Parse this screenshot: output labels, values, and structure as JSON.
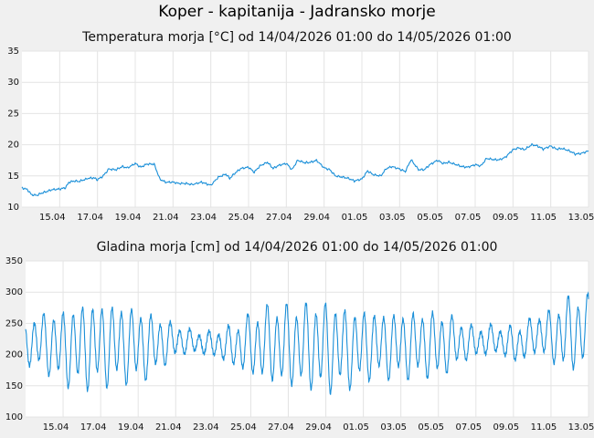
{
  "title": "Koper - kapitanija - Jadransko morje",
  "chart_data": [
    {
      "type": "line",
      "title": "Temperatura morja [°C] od 14/04/2026 01:00 do 14/05/2026 01:00",
      "xlabel": "",
      "ylabel": "",
      "ylim": [
        10,
        35
      ],
      "yticks": [
        10,
        15,
        20,
        25,
        30,
        35
      ],
      "xlim": [
        13.0,
        43.0
      ],
      "x_tick_labels": [
        "15.04",
        "17.04",
        "19.04",
        "21.04",
        "23.04",
        "25.04",
        "27.04",
        "29.04",
        "01.05",
        "03.05",
        "05.05",
        "07.05",
        "09.05",
        "11.05",
        "13.05"
      ],
      "x_tick_positions": [
        15,
        17,
        19,
        21,
        23,
        25,
        27,
        29,
        31,
        33,
        35,
        37,
        39,
        41,
        43
      ],
      "grid": true,
      "color": "#1a8fd8",
      "series": [
        {
          "x": [
            13.0,
            13.3,
            13.5,
            13.8,
            14.0,
            14.3,
            14.6,
            15.0,
            15.3,
            15.5,
            15.8,
            16.0,
            16.5,
            16.8,
            17.0,
            17.3,
            17.6,
            18.0,
            18.3,
            18.6,
            19.0,
            19.3,
            19.6,
            20.0,
            20.3,
            20.6,
            21.0,
            21.3,
            21.7,
            22.0,
            22.5,
            23.0,
            23.4,
            23.8,
            24.0,
            24.3,
            24.6,
            25.0,
            25.3,
            25.6,
            26.0,
            26.3,
            26.6,
            27.0,
            27.3,
            27.6,
            28.0,
            28.3,
            28.6,
            29.0,
            29.3,
            29.6,
            30.0,
            30.3,
            30.6,
            31.0,
            31.3,
            31.6,
            32.0,
            32.3,
            32.6,
            33.0,
            33.3,
            33.6,
            34.0,
            34.3,
            34.6,
            35.0,
            35.3,
            35.6,
            36.0,
            36.3,
            36.6,
            37.0,
            37.3,
            37.6,
            38.0,
            38.3,
            38.6,
            39.0,
            39.3,
            39.6,
            40.0,
            40.3,
            40.6,
            41.0,
            41.3,
            41.6,
            42.0,
            42.3,
            42.6,
            43.0
          ],
          "values": [
            13.1,
            12.8,
            12.0,
            11.9,
            12.2,
            12.5,
            12.8,
            12.9,
            13.1,
            14.0,
            14.2,
            14.1,
            14.6,
            14.7,
            14.4,
            15.0,
            16.1,
            16.0,
            16.5,
            16.3,
            17.0,
            16.4,
            16.9,
            16.9,
            14.5,
            14.0,
            14.0,
            13.8,
            13.8,
            13.6,
            14.0,
            13.5,
            14.8,
            15.3,
            14.6,
            15.5,
            16.2,
            16.4,
            15.6,
            16.6,
            17.2,
            16.2,
            16.7,
            17.0,
            16.0,
            17.5,
            17.1,
            17.2,
            17.5,
            16.3,
            16.0,
            15.0,
            14.8,
            14.6,
            14.2,
            14.5,
            15.8,
            15.2,
            15.0,
            16.2,
            16.5,
            16.1,
            15.7,
            17.6,
            16.0,
            16.0,
            16.8,
            17.5,
            17.0,
            17.2,
            16.8,
            16.5,
            16.4,
            16.8,
            16.6,
            17.8,
            17.6,
            17.6,
            18.0,
            19.2,
            19.5,
            19.2,
            20.0,
            19.8,
            19.3,
            19.8,
            19.3,
            19.4,
            19.0,
            18.5,
            18.6,
            19.0
          ]
        }
      ]
    },
    {
      "type": "line",
      "title": "Gladina morja [cm] od 14/04/2026 01:00 do 14/05/2026 01:00",
      "xlabel": "",
      "ylabel": "",
      "ylim": [
        100,
        350
      ],
      "yticks": [
        100,
        150,
        200,
        250,
        300,
        350
      ],
      "xlim": [
        13.0,
        43.0
      ],
      "x_tick_labels": [
        "15.04",
        "17.04",
        "19.04",
        "21.04",
        "23.04",
        "25.04",
        "27.04",
        "29.04",
        "01.05",
        "03.05",
        "05.05",
        "07.05",
        "09.05",
        "11.05",
        "13.05"
      ],
      "x_tick_positions": [
        15,
        17,
        19,
        21,
        23,
        25,
        27,
        29,
        31,
        33,
        35,
        37,
        39,
        41,
        43
      ],
      "grid": true,
      "color": "#1a8fd8",
      "series": [
        {
          "x": [
            13.0,
            13.5,
            14.0,
            14.5,
            15.0,
            15.5,
            16.0,
            16.5,
            17.0,
            17.5,
            18.0,
            18.5,
            19.0,
            19.5,
            20.0,
            20.5,
            21.0,
            21.5,
            22.0,
            22.5,
            23.0,
            23.5,
            24.0,
            24.5,
            25.0,
            25.5,
            26.0,
            26.5,
            27.0,
            27.5,
            28.0,
            28.5,
            29.0,
            29.5,
            30.0,
            30.5,
            31.0,
            31.5,
            32.0,
            32.5,
            33.0,
            33.5,
            34.0,
            34.5,
            35.0,
            35.5,
            36.0,
            36.5,
            37.0,
            37.5,
            38.0,
            38.5,
            39.0,
            39.5,
            40.0,
            40.5,
            41.0,
            41.5,
            42.0,
            42.5,
            43.0
          ],
          "mean": [
            218,
            222,
            220,
            215,
            212,
            212,
            214,
            215,
            216,
            217,
            217,
            216,
            215,
            214,
            217,
            220,
            222,
            222,
            220,
            218,
            217,
            216,
            214,
            214,
            216,
            216,
            218,
            216,
            215,
            214,
            215,
            214,
            212,
            212,
            211,
            210,
            215,
            217,
            215,
            215,
            215,
            215,
            217,
            216,
            215,
            218,
            220,
            220,
            220,
            222,
            225,
            220,
            216,
            219,
            230,
            235,
            228,
            230,
            236,
            234,
            240
          ],
          "amp": [
            30,
            35,
            40,
            45,
            50,
            55,
            58,
            58,
            56,
            56,
            54,
            52,
            50,
            45,
            38,
            30,
            22,
            18,
            15,
            15,
            18,
            22,
            28,
            35,
            42,
            48,
            52,
            55,
            55,
            56,
            58,
            60,
            62,
            60,
            55,
            52,
            50,
            45,
            45,
            45,
            45,
            45,
            45,
            45,
            45,
            40,
            32,
            25,
            20,
            20,
            20,
            20,
            25,
            25,
            25,
            30,
            35,
            45,
            50,
            50,
            50
          ]
        }
      ]
    }
  ]
}
